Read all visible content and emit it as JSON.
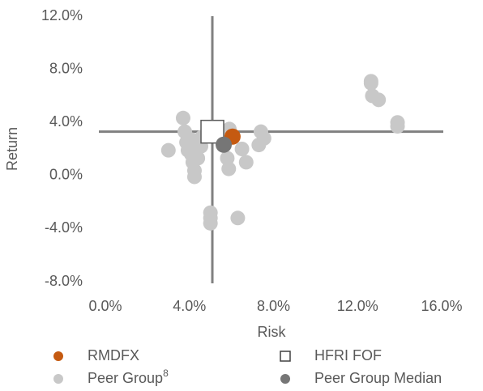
{
  "chart_data": {
    "type": "scatter",
    "xlabel": "Risk",
    "ylabel": "Return",
    "xlim": [
      0,
      16
    ],
    "ylim": [
      -8,
      12
    ],
    "xticks": [
      {
        "value": 0,
        "label": "0.0%"
      },
      {
        "value": 4,
        "label": "4.0%"
      },
      {
        "value": 8,
        "label": "8.0%"
      },
      {
        "value": 12,
        "label": "12.0%"
      },
      {
        "value": 16,
        "label": "16.0%"
      }
    ],
    "yticks": [
      {
        "value": -8,
        "label": "-8.0%"
      },
      {
        "value": -4,
        "label": "-4.0%"
      },
      {
        "value": 0,
        "label": "0.0%"
      },
      {
        "value": 4,
        "label": "4.0%"
      },
      {
        "value": 8,
        "label": "8.0%"
      },
      {
        "value": 12,
        "label": "12.0%"
      }
    ],
    "crosshair_color": "#808080",
    "series": [
      {
        "name": "Peer Group",
        "name_superscript": "8",
        "color": "#c8c8c8",
        "marker": "circle",
        "x": [
          3.7,
          3.78,
          3.86,
          3.93,
          4.09,
          4.16,
          4.24,
          4.24,
          4.4,
          4.55,
          3.0,
          4.1,
          5.0,
          5.0,
          5.0,
          6.3,
          5.8,
          5.87,
          5.9,
          6.5,
          6.7,
          7.4,
          7.55,
          7.3,
          12.64,
          12.7,
          13.0,
          13.9,
          13.9,
          12.64,
          4.4,
          4.6
        ],
        "y": [
          4.33,
          3.3,
          2.5,
          1.9,
          1.6,
          1.0,
          0.37,
          -0.1,
          1.3,
          2.2,
          1.9,
          2.7,
          -2.8,
          -3.6,
          -3.2,
          -3.2,
          1.3,
          0.5,
          3.5,
          2.0,
          1.0,
          3.3,
          2.8,
          2.3,
          6.95,
          6.0,
          5.7,
          4.0,
          3.7,
          7.1,
          2.2,
          2.9
        ]
      },
      {
        "name": "RMDFX",
        "color": "#c55a11",
        "marker": "circle",
        "x": [
          6.05
        ],
        "y": [
          2.93
        ]
      },
      {
        "name": "HFRI FOF",
        "color": "#ffffff",
        "marker": "square",
        "x": [
          5.09
        ],
        "y": [
          3.3
        ]
      },
      {
        "name": "Peer Group Median",
        "color": "#767676",
        "marker": "circle",
        "x": [
          5.63
        ],
        "y": [
          2.32
        ]
      }
    ],
    "legend_order": [
      "RMDFX",
      "HFRI FOF",
      "Peer Group",
      "Peer Group Median"
    ]
  }
}
